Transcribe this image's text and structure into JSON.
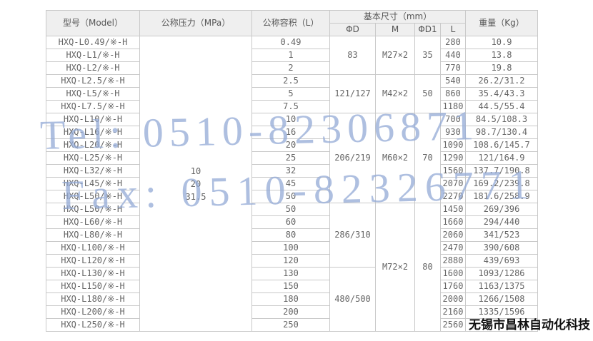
{
  "table": {
    "headers": {
      "model": "型号（Model）",
      "pressure": "公称压力（MPa）",
      "volume": "公称容积（L）",
      "dimensions": "基本尺寸（mm）",
      "phi_d": "ΦD",
      "m": "M",
      "phi_d1": "ΦD1",
      "l": "L",
      "weight": "重量（Kg）"
    },
    "pressure_cell": {
      "lines": [
        "10",
        "20",
        "31.5"
      ]
    },
    "phi_d_merges": [
      {
        "start": 0,
        "span": 3,
        "value": "83"
      },
      {
        "start": 3,
        "span": 3,
        "value": "121/127"
      },
      {
        "start": 6,
        "span": 7,
        "value": "206/219"
      },
      {
        "start": 13,
        "span": 5,
        "value": "286/310"
      },
      {
        "start": 18,
        "span": 5,
        "value": "480/500"
      }
    ],
    "m_merges": [
      {
        "start": 0,
        "span": 3,
        "value": "M27×2"
      },
      {
        "start": 3,
        "span": 3,
        "value": "M42×2"
      },
      {
        "start": 6,
        "span": 7,
        "value": "M60×2"
      },
      {
        "start": 13,
        "span": 10,
        "value": "M72×2"
      }
    ],
    "phi_d1_merges": [
      {
        "start": 0,
        "span": 3,
        "value": "35"
      },
      {
        "start": 3,
        "span": 3,
        "value": "50"
      },
      {
        "start": 6,
        "span": 7,
        "value": "70"
      },
      {
        "start": 13,
        "span": 10,
        "value": "80"
      }
    ],
    "rows": [
      {
        "model": "HXQ-L0.49/※-H",
        "volume": "0.49",
        "l": "280",
        "weight": "10.9"
      },
      {
        "model": "HXQ-L1/※-H",
        "volume": "1",
        "l": "440",
        "weight": "13.8"
      },
      {
        "model": "HXQ-L2/※-H",
        "volume": "2",
        "l": "770",
        "weight": "19.8"
      },
      {
        "model": "HXQ-L2.5/※-H",
        "volume": "2.5",
        "l": "540",
        "weight": "26.2/31.2"
      },
      {
        "model": "HXQ-L5/※-H",
        "volume": "5",
        "l": "860",
        "weight": "35.4/43.3"
      },
      {
        "model": "HXQ-L7.5/※-H",
        "volume": "7.5",
        "l": "1180",
        "weight": "44.5/55.4"
      },
      {
        "model": "HXQ-L10/※-H",
        "volume": "10",
        "l": "700",
        "weight": "84.5/108.3"
      },
      {
        "model": "HXQ-L16/※-H",
        "volume": "16",
        "l": "930",
        "weight": "98.7/130.4"
      },
      {
        "model": "HXQ-L20/※-H",
        "volume": "20",
        "l": "1090",
        "weight": "108.6/145.7"
      },
      {
        "model": "HXQ-L25/※-H",
        "volume": "25",
        "l": "1290",
        "weight": "121/164.9"
      },
      {
        "model": "HXQ-L32/※-H",
        "volume": "32",
        "l": "1560",
        "weight": "137.7/190.8"
      },
      {
        "model": "HXQ-L45/※-H",
        "volume": "45",
        "l": "2070",
        "weight": "169.2/239.8"
      },
      {
        "model": "HXQ-L50/※-H",
        "volume": "50",
        "l": "2270",
        "weight": "181.6/258.9"
      },
      {
        "model": "HXQ-L50/※-H",
        "volume": "50",
        "l": "1450",
        "weight": "269/396"
      },
      {
        "model": "HXQ-L60/※-H",
        "volume": "60",
        "l": "1660",
        "weight": "294/440"
      },
      {
        "model": "HXQ-L80/※-H",
        "volume": "80",
        "l": "2060",
        "weight": "341/523"
      },
      {
        "model": "HXQ-L100/※-H",
        "volume": "100",
        "l": "2470",
        "weight": "390/608"
      },
      {
        "model": "HXQ-L120/※-H",
        "volume": "120",
        "l": "2880",
        "weight": "439/693"
      },
      {
        "model": "HXQ-L130/※-H",
        "volume": "130",
        "l": "1600",
        "weight": "1093/1286"
      },
      {
        "model": "HXQ-L150/※-H",
        "volume": "150",
        "l": "1760",
        "weight": "1163/1375"
      },
      {
        "model": "HXQ-L180/※-H",
        "volume": "180",
        "l": "2000",
        "weight": "1266/1508"
      },
      {
        "model": "HXQ-L200/※-H",
        "volume": "200",
        "l": "2160",
        "weight": "1335/1596"
      },
      {
        "model": "HXQ-L250/※-H",
        "volume": "250",
        "l": "2560",
        "weight": ""
      }
    ]
  },
  "watermarks": {
    "tel": "Tel: 0510-82306871",
    "fax": "Fax: 0510-82326771"
  },
  "company": {
    "name": "无锡市昌林自动化科技"
  },
  "colors": {
    "header_bg": "#efefef",
    "border": "#c9c9c9",
    "text": "#666666",
    "watermark_blue": "#93aad6",
    "company_text": "#111111"
  }
}
